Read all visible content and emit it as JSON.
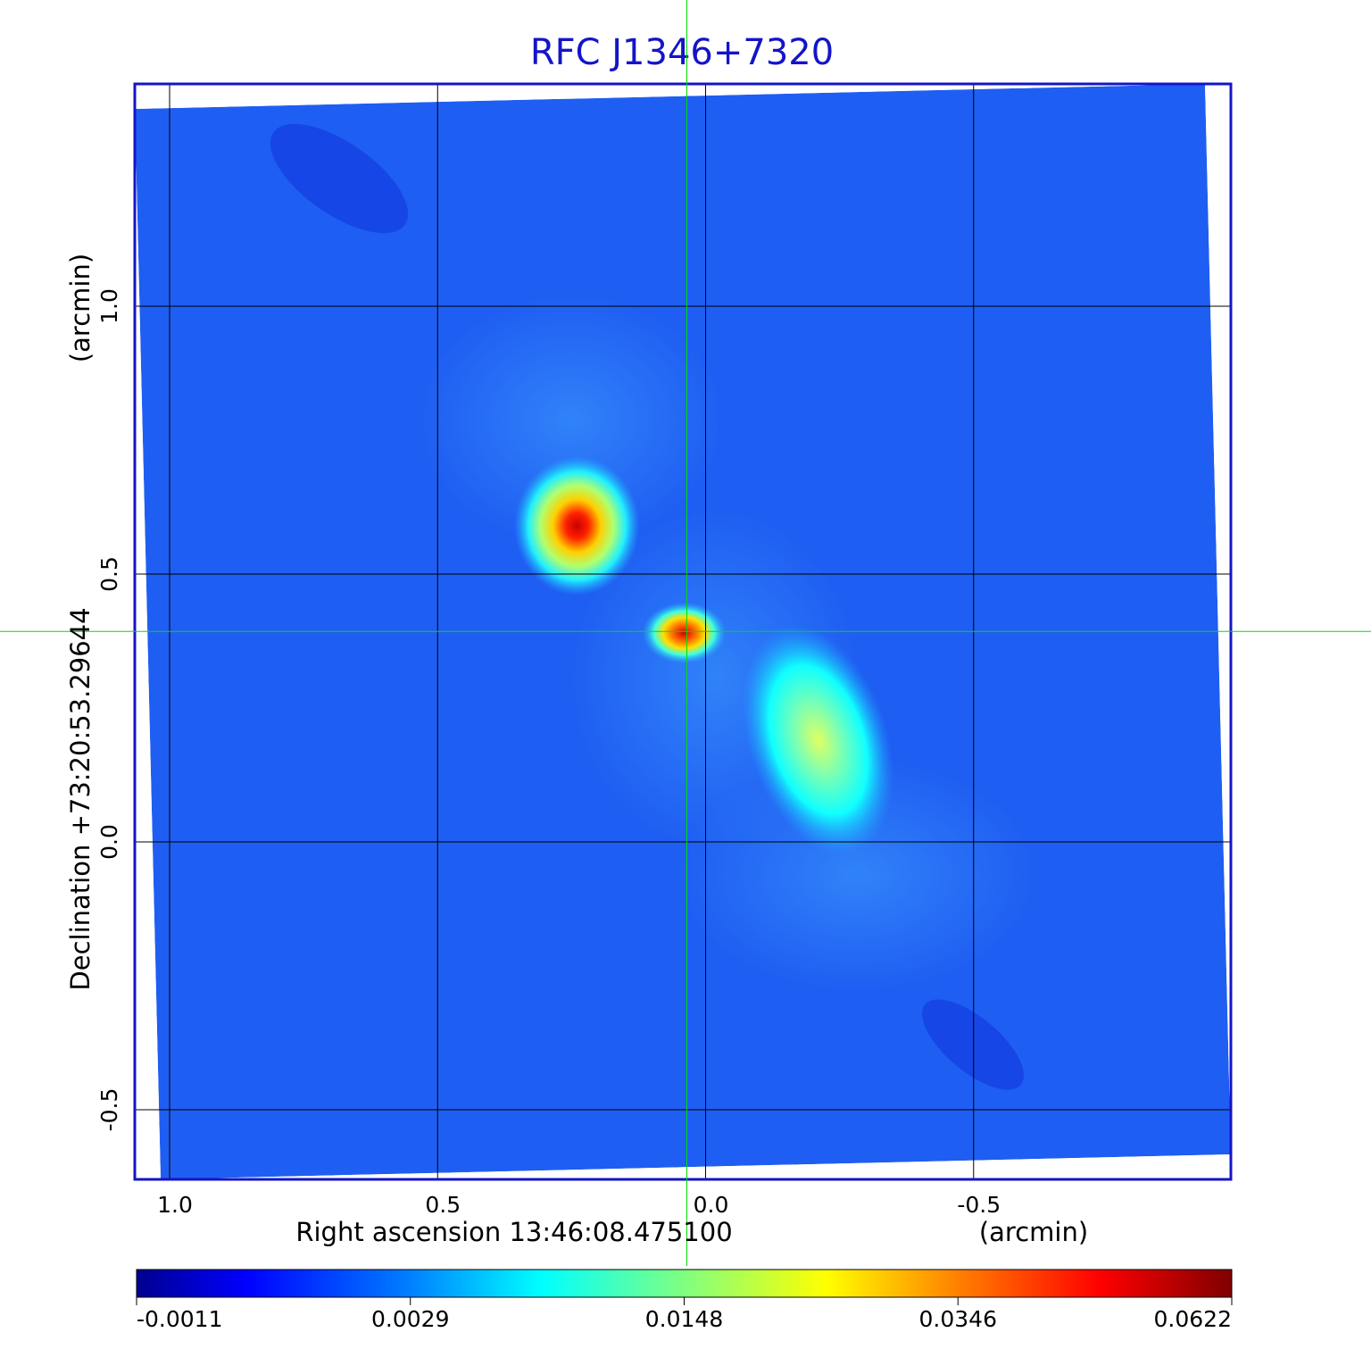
{
  "chart_data": {
    "type": "heatmap",
    "title": "RFC J1346+7320",
    "xlabel": "Right ascension  13:46:08.475100",
    "xunit": "(arcmin)",
    "ylabel": "Declination  +73:20:53.29644",
    "yunit": "(arcmin)",
    "x_ticks": [
      "1.0",
      "0.5",
      "0.0",
      "-0.5"
    ],
    "x_tick_values": [
      1.0,
      0.5,
      0.0,
      -0.5
    ],
    "y_ticks": [
      "1.0",
      "0.5",
      "0.0",
      "-0.5"
    ],
    "y_tick_values": [
      1.0,
      0.5,
      0.0,
      -0.5
    ],
    "xlim": [
      1.065,
      -0.98
    ],
    "ylim": [
      -0.63,
      1.415
    ],
    "grid": true,
    "crosshair": {
      "x": 0.035,
      "y": 0.393
    },
    "colorbar": {
      "ticks": [
        "-0.0011",
        "0.0029",
        "0.0148",
        "0.0346",
        "0.0622"
      ],
      "range": [
        -0.0011,
        0.0622
      ]
    },
    "sources": [
      {
        "name": "",
        "x": 0.24,
        "y": 0.59,
        "peak": 0.0622,
        "sigma_x": 0.045,
        "sigma_y": 0.05
      },
      {
        "name": "",
        "x": 0.04,
        "y": 0.39,
        "peak": 0.05,
        "sigma_x": 0.03,
        "sigma_y": 0.022
      },
      {
        "name": "",
        "x": -0.21,
        "y": 0.19,
        "peak": 0.02,
        "sigma_x": 0.05,
        "sigma_y": 0.085
      }
    ],
    "colors": {
      "frame": "#1414c8",
      "crosshair": "#00dd00",
      "colormap": [
        "#00008f",
        "#0000ff",
        "#0080ff",
        "#00ffff",
        "#80ff80",
        "#ffff00",
        "#ff8000",
        "#ff0000",
        "#800000"
      ]
    }
  }
}
